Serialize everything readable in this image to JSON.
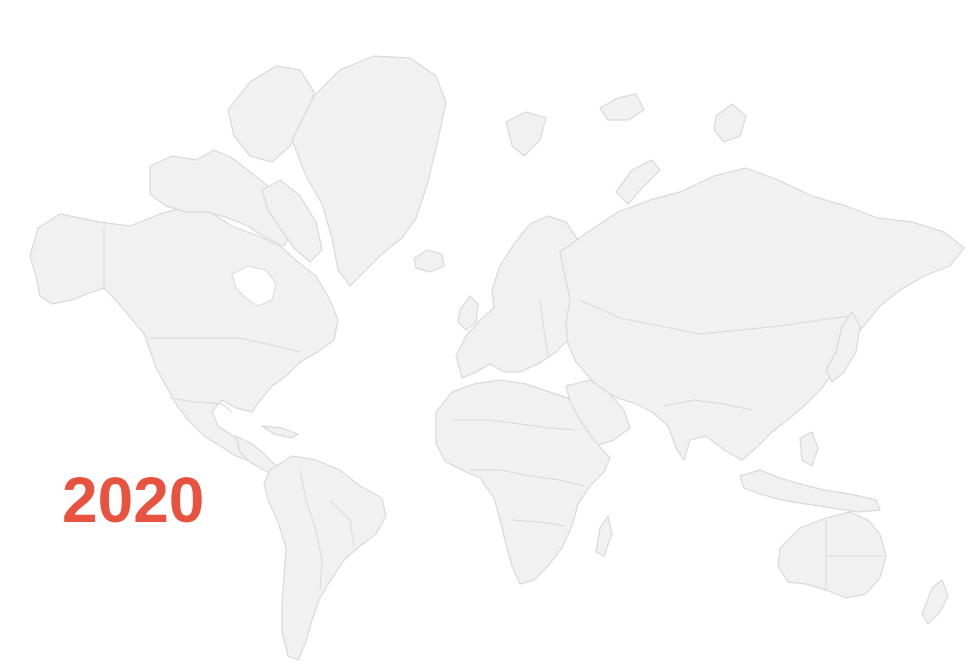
{
  "map": {
    "projection": "mercator",
    "land_color": "#f1f1f1",
    "border_color": "#d9d9d9",
    "background_color": "#ffffff"
  },
  "year_label": {
    "text": "2020",
    "color": "#e8533f"
  }
}
